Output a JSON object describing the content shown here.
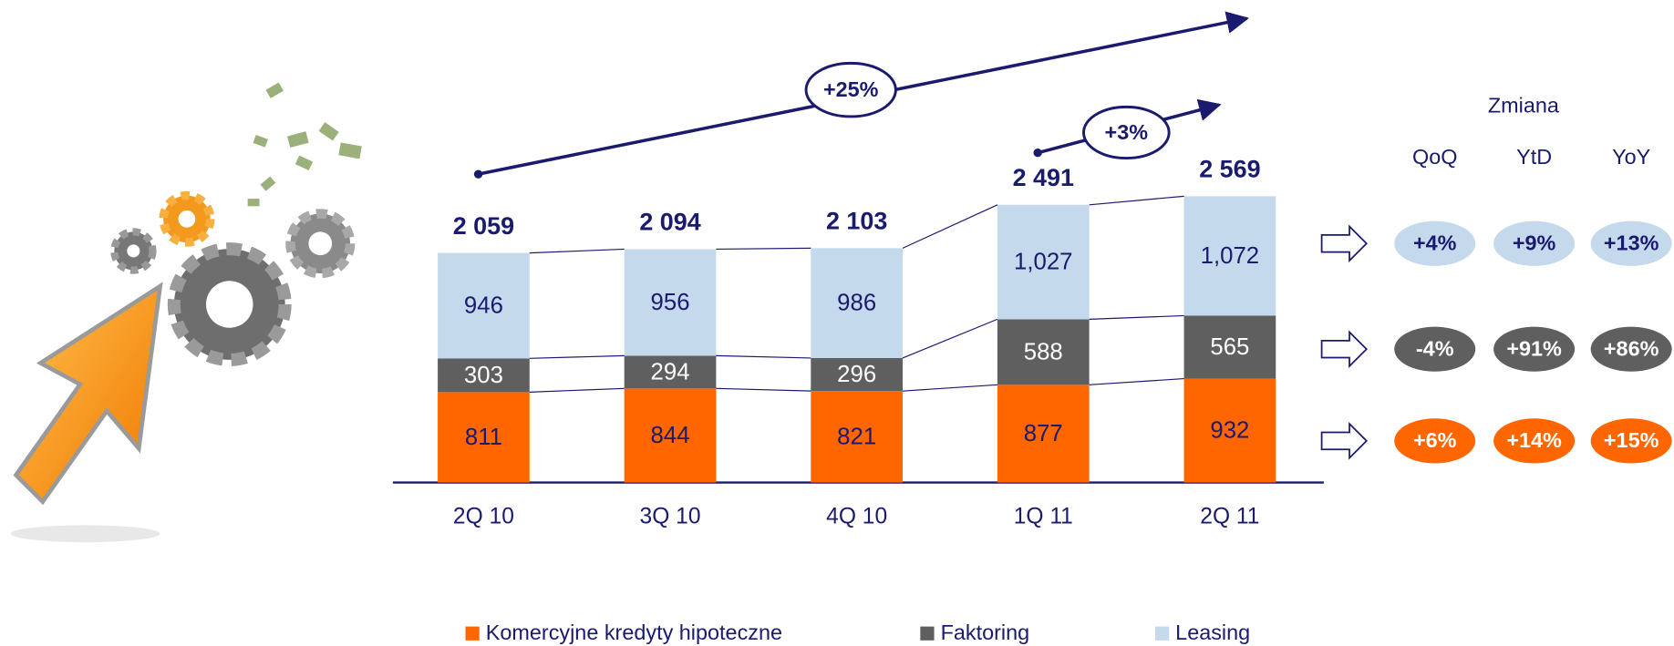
{
  "chart_data": {
    "type": "stacked-bar",
    "categories": [
      "2Q 10",
      "3Q 10",
      "4Q 10",
      "1Q 11",
      "2Q 11"
    ],
    "series": [
      {
        "name": "Komercyjne kredyty hipoteczne",
        "color": "#ff6600",
        "values": [
          811,
          844,
          821,
          877,
          932
        ]
      },
      {
        "name": "Faktoring",
        "color": "#5f5f5f",
        "values": [
          303,
          294,
          296,
          588,
          565
        ]
      },
      {
        "name": "Leasing",
        "color": "#c5d9ed",
        "values": [
          946,
          956,
          986,
          1027,
          1072
        ],
        "value_labels": [
          "946",
          "956",
          "986",
          "1,027",
          "1,072"
        ]
      }
    ],
    "totals": {
      "values": [
        2059,
        2094,
        2103,
        2491,
        2569
      ],
      "value_labels": [
        "2 059",
        "2 094",
        "2 103",
        "2 491",
        "2 569"
      ]
    },
    "ylim": [
      0,
      2700
    ],
    "annotations": [
      "+25%",
      "+3%"
    ],
    "changes": {
      "title": "Zmiana",
      "columns": [
        "QoQ",
        "YtD",
        "YoY"
      ],
      "rows": [
        [
          "+6%",
          "+14%",
          "+15%"
        ],
        [
          "-4%",
          "+91%",
          "+86%"
        ],
        [
          "+4%",
          "+9%",
          "+13%"
        ]
      ]
    }
  }
}
